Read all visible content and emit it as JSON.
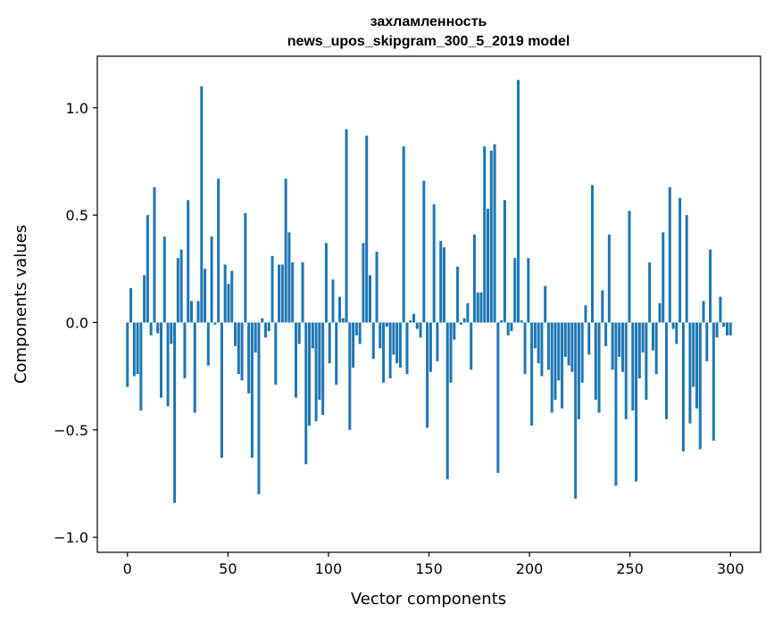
{
  "chart_data": {
    "type": "bar",
    "title_line1": "захламленность",
    "title_line2": "news_upos_skipgram_300_5_2019 model",
    "xlabel": "Vector components",
    "ylabel": "Components values",
    "xlim": [
      -15,
      315
    ],
    "ylim": [
      -1.07,
      1.24
    ],
    "xticks": [
      0,
      50,
      100,
      150,
      200,
      250,
      300
    ],
    "xtick_labels": [
      "0",
      "50",
      "100",
      "150",
      "200",
      "250",
      "300"
    ],
    "yticks": [
      -1.0,
      -0.5,
      0.0,
      0.5,
      1.0
    ],
    "ytick_labels": [
      "−1.0",
      "−0.5",
      "0.0",
      "0.5",
      "1.0"
    ],
    "bar_color": "#1f77b4",
    "values": [
      -0.3,
      0.16,
      -0.25,
      -0.24,
      -0.41,
      0.22,
      0.5,
      -0.06,
      0.63,
      -0.05,
      -0.35,
      0.4,
      -0.39,
      -0.1,
      -0.84,
      0.3,
      0.34,
      -0.26,
      0.57,
      0.1,
      -0.42,
      0.1,
      1.1,
      0.25,
      -0.2,
      0.4,
      -0.01,
      0.67,
      -0.63,
      0.27,
      0.18,
      0.24,
      -0.11,
      -0.24,
      -0.27,
      0.51,
      -0.33,
      -0.63,
      -0.14,
      -0.8,
      0.02,
      -0.07,
      -0.04,
      0.31,
      -0.29,
      0.27,
      0.27,
      0.67,
      0.42,
      0.28,
      -0.35,
      -0.1,
      0.28,
      -0.66,
      -0.48,
      -0.12,
      -0.46,
      -0.36,
      -0.43,
      0.37,
      -0.19,
      0.2,
      -0.29,
      0.12,
      0.02,
      0.9,
      -0.5,
      -0.21,
      -0.06,
      -0.1,
      0.37,
      0.87,
      0.22,
      -0.17,
      0.33,
      -0.12,
      -0.28,
      -0.02,
      -0.26,
      -0.15,
      -0.19,
      -0.21,
      0.82,
      -0.24,
      0.01,
      0.04,
      -0.03,
      -0.07,
      0.66,
      -0.49,
      -0.23,
      0.55,
      -0.18,
      0.38,
      0.35,
      -0.73,
      -0.28,
      -0.08,
      0.26,
      -0.01,
      0.02,
      0.09,
      -0.22,
      0.41,
      0.14,
      0.14,
      0.82,
      0.53,
      0.8,
      0.83,
      -0.7,
      0.01,
      0.57,
      -0.06,
      -0.04,
      0.3,
      1.13,
      0.01,
      -0.24,
      0.3,
      -0.48,
      -0.12,
      -0.19,
      -0.25,
      0.17,
      -0.22,
      -0.42,
      -0.36,
      -0.27,
      -0.4,
      -0.16,
      -0.2,
      -0.23,
      -0.82,
      -0.45,
      -0.28,
      0.08,
      -0.15,
      0.64,
      -0.36,
      -0.42,
      0.15,
      -0.11,
      0.41,
      -0.22,
      -0.76,
      -0.16,
      -0.23,
      -0.45,
      0.52,
      -0.41,
      -0.74,
      -0.26,
      -0.14,
      -0.36,
      0.28,
      -0.13,
      -0.24,
      0.09,
      0.42,
      -0.45,
      0.63,
      -0.03,
      -0.1,
      0.58,
      -0.6,
      0.5,
      -0.47,
      -0.3,
      -0.4,
      -0.59,
      0.1,
      -0.18,
      0.34,
      -0.55,
      -0.07,
      0.12,
      -0.02,
      -0.06,
      -0.06
    ]
  }
}
